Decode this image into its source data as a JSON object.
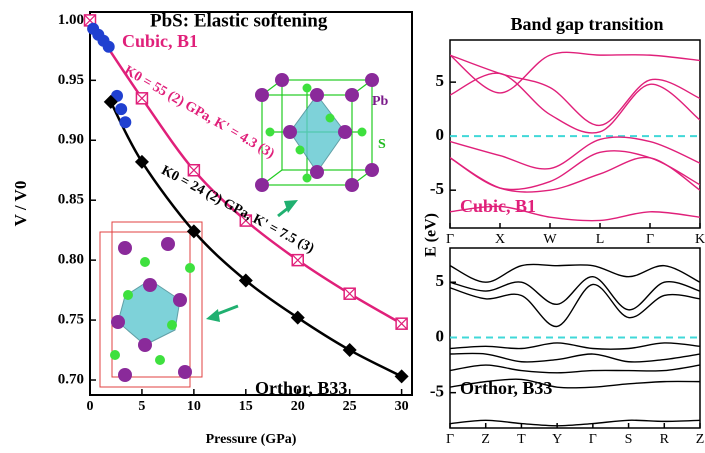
{
  "chart_data": [
    {
      "type": "scatter",
      "title": "PbS:  Elastic softening",
      "x_label": "Pressure (GPa)",
      "y_label": "V / V0",
      "xlim": [
        0,
        31
      ],
      "xticks": [
        0,
        5,
        10,
        15,
        20,
        25,
        30
      ],
      "ylim": [
        0.6875,
        1.007
      ],
      "yticks": [
        {
          "value": 0.7,
          "label": "0.70"
        },
        0.75,
        {
          "value": 0.8,
          "label": "0.80"
        },
        0.85,
        {
          "value": 0.9,
          "label": "0.90"
        },
        0.95,
        {
          "value": 1.0,
          "label": "1.00"
        }
      ],
      "series": [
        {
          "color": "#e0207a",
          "marker": "square-x",
          "line": true,
          "x": [
            0,
            5,
            10,
            15,
            20,
            25,
            30
          ],
          "values": [
            1.0,
            0.935,
            0.875,
            0.833,
            0.8,
            0.772,
            0.747
          ]
        },
        {
          "color": "#2040d0",
          "marker": "circle",
          "line": false,
          "x": [
            0.3,
            0.8,
            1.3,
            1.8,
            2.6,
            3.0,
            3.4
          ],
          "values": [
            0.993,
            0.988,
            0.983,
            0.978,
            0.937,
            0.926,
            0.915
          ]
        },
        {
          "color": "#000000",
          "marker": "diamond",
          "line": true,
          "x": [
            2,
            5,
            10,
            15,
            20,
            25,
            30
          ],
          "values": [
            0.932,
            0.882,
            0.824,
            0.783,
            0.752,
            0.725,
            0.703
          ]
        }
      ],
      "annotations": [
        {
          "text": "Cubic, B1",
          "color": "#e0207a"
        },
        {
          "text": "K0 = 55 (2) GPa, K' = 4.3 (3)",
          "color": "#e0207a"
        },
        {
          "text": "K0 = 24 (2) GPa, K' = 7.5 (3)",
          "color": "#000000"
        },
        {
          "text": "Orthor, B33",
          "color": "#000000"
        },
        {
          "text": "Pb",
          "color": "#7a1a8a"
        },
        {
          "text": "S",
          "color": "#22bb22"
        }
      ]
    },
    {
      "type": "line",
      "title": "Band gap transition",
      "y_label": "E (eV)",
      "label": "Cubic, B1",
      "categories": [
        "Γ",
        "X",
        "W",
        "L",
        "Γ",
        "K"
      ],
      "ylim": [
        -8.5,
        8.9
      ],
      "yticks": [
        -5,
        0,
        5
      ],
      "fermi": 0,
      "color": "#e0207a",
      "series": [
        {
          "values": [
            7.5,
            5.8,
            4.5,
            1.0,
            5.2,
            3.5
          ]
        },
        {
          "values": [
            3.8,
            5.8,
            2.0,
            0.4,
            4.8,
            1.5
          ]
        },
        {
          "values": [
            7.5,
            4.0,
            7.5,
            7.5,
            7.5,
            7.0
          ]
        },
        {
          "values": [
            -0.5,
            -1.8,
            -3.0,
            -0.3,
            -0.5,
            -2.5
          ]
        },
        {
          "values": [
            -2.0,
            -4.8,
            -4.2,
            -1.5,
            -2.0,
            -4.5
          ]
        },
        {
          "values": [
            -2.0,
            -4.8,
            -5.0,
            -3.5,
            -2.0,
            -5.0
          ]
        },
        {
          "values": [
            -7.0,
            -6.5,
            -7.5,
            -7.8,
            -7.0,
            -7.5
          ]
        }
      ]
    },
    {
      "type": "line",
      "label": "Orthor, B33",
      "categories": [
        "Γ",
        "Z",
        "T",
        "Y",
        "Γ",
        "S",
        "R",
        "Z"
      ],
      "ylim": [
        -8.2,
        8.1
      ],
      "yticks": [
        -5,
        0,
        5
      ],
      "fermi": 0,
      "color": "#000000",
      "series": [
        {
          "values": [
            5.0,
            4.2,
            5.0,
            3.0,
            5.5,
            2.5,
            5.0,
            4.2
          ]
        },
        {
          "values": [
            4.5,
            3.5,
            3.8,
            1.0,
            4.8,
            1.8,
            3.8,
            3.5
          ]
        },
        {
          "values": [
            6.5,
            5.0,
            6.5,
            6.5,
            6.5,
            5.5,
            6.5,
            5.0
          ]
        },
        {
          "values": [
            -1.0,
            -0.8,
            -1.0,
            -0.5,
            -1.0,
            -1.0,
            -0.5,
            -0.8
          ]
        },
        {
          "values": [
            -1.5,
            -1.5,
            -2.2,
            -2.0,
            -1.5,
            -2.2,
            -2.0,
            -1.5
          ]
        },
        {
          "values": [
            -3.0,
            -2.5,
            -3.0,
            -3.2,
            -3.0,
            -3.0,
            -3.0,
            -2.5
          ]
        },
        {
          "values": [
            -4.5,
            -4.0,
            -3.8,
            -4.5,
            -4.5,
            -4.2,
            -4.0,
            -4.0
          ]
        },
        {
          "values": [
            -7.8,
            -7.5,
            -7.8,
            -8.0,
            -7.8,
            -7.5,
            -7.6,
            -7.5
          ]
        }
      ]
    }
  ]
}
